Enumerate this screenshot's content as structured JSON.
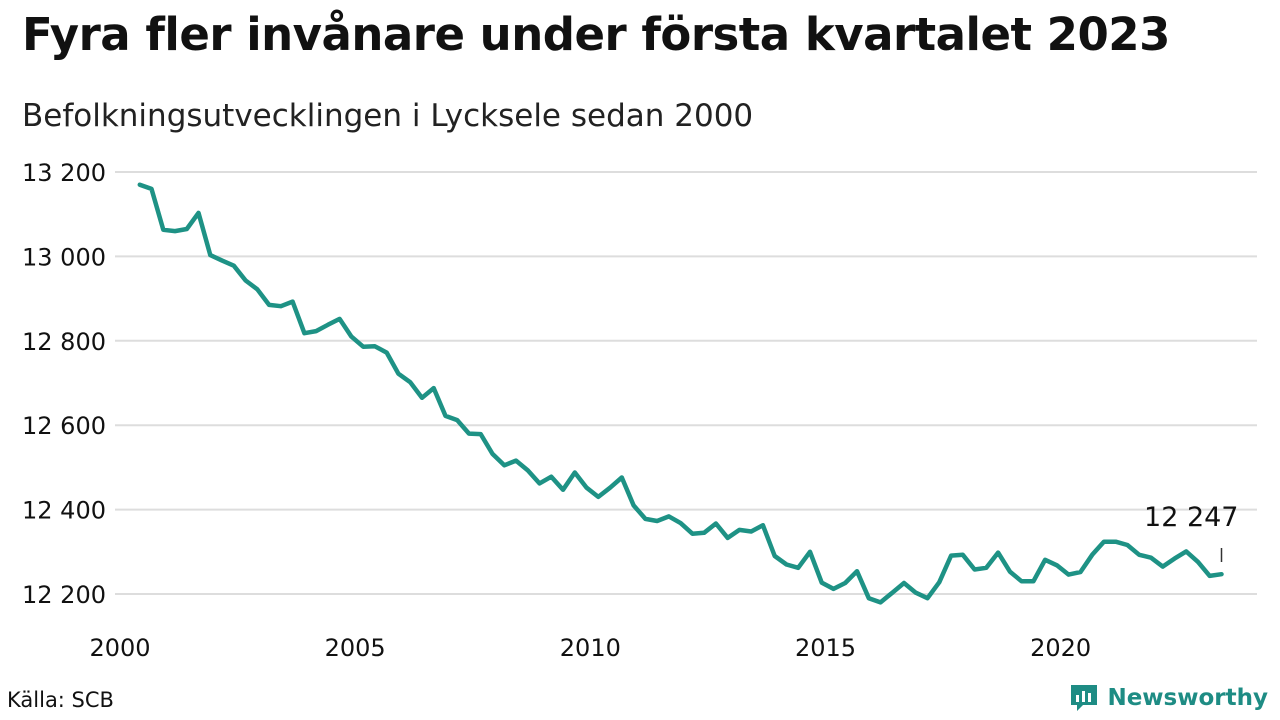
{
  "header": {
    "title": "Fyra fler invånare under första kvartalet 2023",
    "subtitle": "Befolkningsutvecklingen i Lycksele sedan 2000"
  },
  "footer": {
    "source": "Källa: SCB",
    "brand": "Newsworthy",
    "brand_icon": "chart-logo-icon"
  },
  "colors": {
    "line": "#1e9285",
    "grid": "#dddddd",
    "text": "#111111",
    "brand": "#1e8c84"
  },
  "chart_data": {
    "type": "line",
    "title": "Fyra fler invånare under första kvartalet 2023",
    "subtitle": "Befolkningsutvecklingen i Lycksele sedan 2000",
    "xlabel": "",
    "ylabel": "",
    "xlim": [
      2000,
      2023.25
    ],
    "ylim": [
      12150,
      13230
    ],
    "y_ticks": [
      12200,
      12400,
      12600,
      12800,
      13000,
      13200
    ],
    "y_tick_labels": [
      "12 200",
      "12 400",
      "12 600",
      "12 800",
      "13 000",
      "13 200"
    ],
    "x_ticks": [
      2000,
      2005,
      2010,
      2015,
      2020
    ],
    "x_tick_labels": [
      "2000",
      "2005",
      "2010",
      "2015",
      "2020"
    ],
    "grid": "horizontal",
    "legend": "none",
    "annotation": {
      "x": 2023.0,
      "y": 12247,
      "label": "12 247"
    },
    "series": [
      {
        "values": [
          [
            2000.25,
            13170
          ],
          [
            2000.5,
            13160
          ],
          [
            2000.75,
            13063
          ],
          [
            2001.0,
            13060
          ],
          [
            2001.25,
            13065
          ],
          [
            2001.5,
            13103
          ],
          [
            2001.75,
            13003
          ],
          [
            2002.0,
            12990
          ],
          [
            2002.25,
            12978
          ],
          [
            2002.5,
            12943
          ],
          [
            2002.75,
            12922
          ],
          [
            2003.0,
            12885
          ],
          [
            2003.25,
            12882
          ],
          [
            2003.5,
            12893
          ],
          [
            2003.75,
            12818
          ],
          [
            2004.0,
            12823
          ],
          [
            2004.25,
            12838
          ],
          [
            2004.5,
            12852
          ],
          [
            2004.75,
            12810
          ],
          [
            2005.0,
            12786
          ],
          [
            2005.25,
            12787
          ],
          [
            2005.5,
            12772
          ],
          [
            2005.75,
            12722
          ],
          [
            2006.0,
            12702
          ],
          [
            2006.25,
            12665
          ],
          [
            2006.5,
            12688
          ],
          [
            2006.75,
            12622
          ],
          [
            2007.0,
            12612
          ],
          [
            2007.25,
            12580
          ],
          [
            2007.5,
            12579
          ],
          [
            2007.75,
            12532
          ],
          [
            2008.0,
            12505
          ],
          [
            2008.25,
            12516
          ],
          [
            2008.5,
            12493
          ],
          [
            2008.75,
            12462
          ],
          [
            2009.0,
            12478
          ],
          [
            2009.25,
            12447
          ],
          [
            2009.5,
            12488
          ],
          [
            2009.75,
            12452
          ],
          [
            2010.0,
            12430
          ],
          [
            2010.25,
            12452
          ],
          [
            2010.5,
            12476
          ],
          [
            2010.75,
            12410
          ],
          [
            2011.0,
            12378
          ],
          [
            2011.25,
            12373
          ],
          [
            2011.5,
            12384
          ],
          [
            2011.75,
            12368
          ],
          [
            2012.0,
            12343
          ],
          [
            2012.25,
            12345
          ],
          [
            2012.5,
            12367
          ],
          [
            2012.75,
            12333
          ],
          [
            2013.0,
            12352
          ],
          [
            2013.25,
            12348
          ],
          [
            2013.5,
            12363
          ],
          [
            2013.75,
            12290
          ],
          [
            2014.0,
            12270
          ],
          [
            2014.25,
            12262
          ],
          [
            2014.5,
            12300
          ],
          [
            2014.75,
            12227
          ],
          [
            2015.0,
            12212
          ],
          [
            2015.25,
            12226
          ],
          [
            2015.5,
            12254
          ],
          [
            2015.75,
            12190
          ],
          [
            2016.0,
            12180
          ],
          [
            2016.25,
            12203
          ],
          [
            2016.5,
            12226
          ],
          [
            2016.75,
            12203
          ],
          [
            2017.0,
            12190
          ],
          [
            2017.25,
            12228
          ],
          [
            2017.5,
            12291
          ],
          [
            2017.75,
            12293
          ],
          [
            2018.0,
            12258
          ],
          [
            2018.25,
            12262
          ],
          [
            2018.5,
            12298
          ],
          [
            2018.75,
            12253
          ],
          [
            2019.0,
            12230
          ],
          [
            2019.25,
            12230
          ],
          [
            2019.5,
            12281
          ],
          [
            2019.75,
            12268
          ],
          [
            2020.0,
            12246
          ],
          [
            2020.25,
            12252
          ],
          [
            2020.5,
            12293
          ],
          [
            2020.75,
            12324
          ],
          [
            2021.0,
            12324
          ],
          [
            2021.25,
            12316
          ],
          [
            2021.5,
            12293
          ],
          [
            2021.75,
            12286
          ],
          [
            2022.0,
            12265
          ],
          [
            2022.25,
            12284
          ],
          [
            2022.5,
            12301
          ],
          [
            2022.75,
            12276
          ],
          [
            2023.0,
            12243
          ],
          [
            2023.25,
            12247
          ]
        ]
      }
    ]
  }
}
